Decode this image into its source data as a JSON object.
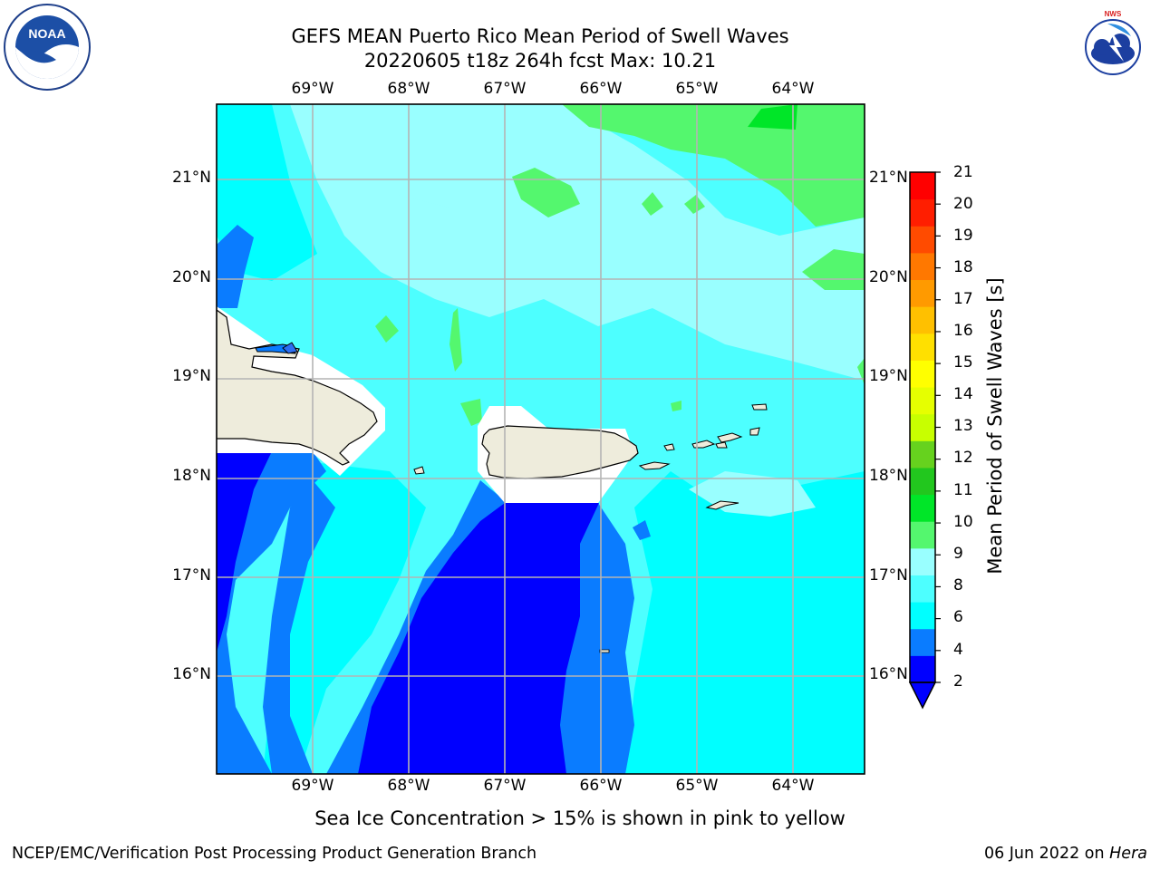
{
  "title": {
    "line1": "GEFS MEAN Puerto Rico Mean Period of Swell Waves",
    "line2": "20220605 t18z 264h fcst   Max: 10.21"
  },
  "logos": {
    "left": {
      "icon": "noaa-logo",
      "text": "NOAA"
    },
    "right": {
      "icon": "nws-logo",
      "text": "NATIONAL WEATHER SERVICE"
    }
  },
  "map": {
    "lon_labels": [
      "69°W",
      "68°W",
      "67°W",
      "66°W",
      "65°W",
      "64°W"
    ],
    "lat_labels": [
      "21°N",
      "20°N",
      "19°N",
      "18°N",
      "17°N",
      "16°N"
    ],
    "land_color": "#eeecdc",
    "colors": {
      "c_blue": "#0000ff",
      "c_azure": "#0a7cff",
      "c_cyan": "#00ffff",
      "c_aqua": "#4dffff",
      "c_pale": "#99ffff",
      "c_green": "#54f76e",
      "c_lime": "#00e628"
    }
  },
  "colorbar": {
    "label": "Mean Period of Swell Waves [s]",
    "ticks": [
      "21",
      "20",
      "19",
      "18",
      "17",
      "16",
      "15",
      "14",
      "13",
      "12",
      "11",
      "10",
      "9",
      "8",
      "6",
      "4",
      "2"
    ],
    "colors": [
      "#0000ff",
      "#0a7cff",
      "#00ffff",
      "#4dffff",
      "#99ffff",
      "#54f76e",
      "#00e628",
      "#22c71e",
      "#66d21e",
      "#c8ff00",
      "#e6ff00",
      "#ffff00",
      "#ffe000",
      "#ffc000",
      "#ff9a00",
      "#ff7800",
      "#ff4b00",
      "#ff1e00",
      "#ff0000"
    ]
  },
  "subtitle": "Sea Ice Concentration > 15% is shown in pink to yellow",
  "footer": {
    "left": "NCEP/EMC/Verification Post Processing Product Generation Branch",
    "right_date": "06 Jun 2022 on ",
    "right_host": "Hera"
  }
}
